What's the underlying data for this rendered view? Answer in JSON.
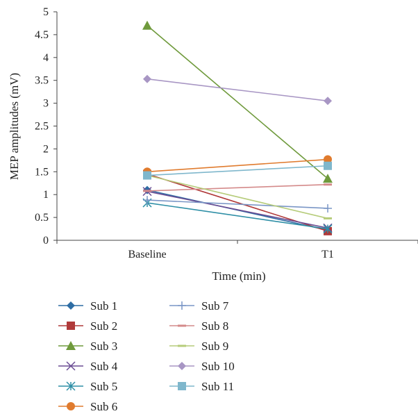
{
  "chart_data": {
    "type": "line",
    "categories": [
      "Baseline",
      "T1"
    ],
    "xlabel": "Time (min)",
    "ylabel": "MEP amplitudes (mV)",
    "ylim": [
      0,
      5
    ],
    "yticks": [
      "0",
      "0.5",
      "1",
      "1.5",
      "2",
      "2.5",
      "3",
      "3.5",
      "4",
      "4.5",
      "5"
    ],
    "grid": false,
    "legend_position": "bottom",
    "series": [
      {
        "name": "Sub 1",
        "values": [
          1.1,
          0.22
        ],
        "color": "#2e6da4",
        "marker": "diamond"
      },
      {
        "name": "Sub 2",
        "values": [
          1.45,
          0.2
        ],
        "color": "#b03a3a",
        "marker": "square"
      },
      {
        "name": "Sub 3",
        "values": [
          4.7,
          1.35
        ],
        "color": "#6f9a3c",
        "marker": "triangle"
      },
      {
        "name": "Sub 4",
        "values": [
          1.07,
          0.27
        ],
        "color": "#6a4c93",
        "marker": "x"
      },
      {
        "name": "Sub 5",
        "values": [
          0.82,
          0.25
        ],
        "color": "#2f8fa6",
        "marker": "asterisk"
      },
      {
        "name": "Sub 6",
        "values": [
          1.5,
          1.77
        ],
        "color": "#e07b2e",
        "marker": "circle"
      },
      {
        "name": "Sub 7",
        "values": [
          0.88,
          0.7
        ],
        "color": "#7a96c6",
        "marker": "plus"
      },
      {
        "name": "Sub 8",
        "values": [
          1.08,
          1.22
        ],
        "color": "#d48a8a",
        "marker": "dash"
      },
      {
        "name": "Sub 9",
        "values": [
          1.42,
          0.48
        ],
        "color": "#b6cc7a",
        "marker": "dash"
      },
      {
        "name": "Sub 10",
        "values": [
          3.53,
          3.05
        ],
        "color": "#a896c4",
        "marker": "diamond"
      },
      {
        "name": "Sub 11",
        "values": [
          1.42,
          1.63
        ],
        "color": "#7fb7cc",
        "marker": "square"
      }
    ]
  }
}
